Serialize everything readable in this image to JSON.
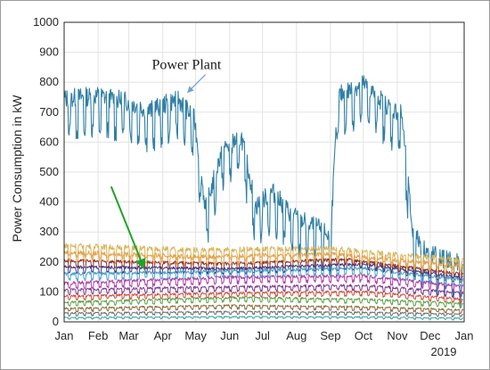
{
  "chart_data": {
    "type": "line",
    "title": "",
    "xlabel": "",
    "ylabel": "Power Consumption in kW",
    "xlim": [
      "2019-01-01",
      "2020-01-01"
    ],
    "ylim": [
      0,
      1000
    ],
    "yticks": [
      0,
      100,
      200,
      300,
      400,
      500,
      600,
      700,
      800,
      900,
      1000
    ],
    "xticks": [
      "Jan",
      "Feb",
      "Mar",
      "Apr",
      "May",
      "Jun",
      "Jul",
      "Aug",
      "Sep",
      "Oct",
      "Nov",
      "Dec",
      "Jan"
    ],
    "year_label": "2019",
    "grid": true,
    "annotations": [
      {
        "text": "Power Plant",
        "points_to": {
          "x": "2019-04-22",
          "y": 760
        },
        "arrow_color": "#6fa3c7"
      },
      {
        "text": "",
        "points_to": {
          "x": "2019-03-15",
          "y": 160
        },
        "arrow_color": "#1fa32a"
      }
    ],
    "series": [
      {
        "color": "#2f7fa6",
        "line_width": 1.1,
        "baseline": [
          {
            "x": "2019-01-01",
            "y": 690
          },
          {
            "x": "2019-02-01",
            "y": 700
          },
          {
            "x": "2019-03-01",
            "y": 680
          },
          {
            "x": "2019-03-20",
            "y": 650
          },
          {
            "x": "2019-04-15",
            "y": 690
          },
          {
            "x": "2019-04-30",
            "y": 620
          },
          {
            "x": "2019-05-10",
            "y": 320
          },
          {
            "x": "2019-05-25",
            "y": 520
          },
          {
            "x": "2019-06-12",
            "y": 560
          },
          {
            "x": "2019-06-25",
            "y": 330
          },
          {
            "x": "2019-07-10",
            "y": 380
          },
          {
            "x": "2019-07-28",
            "y": 300
          },
          {
            "x": "2019-08-20",
            "y": 260
          },
          {
            "x": "2019-09-01",
            "y": 230
          },
          {
            "x": "2019-09-08",
            "y": 700
          },
          {
            "x": "2019-10-01",
            "y": 740
          },
          {
            "x": "2019-10-25",
            "y": 660
          },
          {
            "x": "2019-11-05",
            "y": 640
          },
          {
            "x": "2019-11-15",
            "y": 240
          },
          {
            "x": "2019-12-01",
            "y": 170
          },
          {
            "x": "2019-12-20",
            "y": 150
          },
          {
            "x": "2019-12-31",
            "y": 130
          }
        ],
        "weekly_amplitude": 110
      },
      {
        "color": "#d9b45a",
        "line_width": 1,
        "baseline": [
          {
            "x": "2019-01-01",
            "y": 240
          },
          {
            "x": "2019-05-01",
            "y": 225
          },
          {
            "x": "2019-09-01",
            "y": 230
          },
          {
            "x": "2019-12-31",
            "y": 190
          }
        ],
        "weekly_amplitude": 30
      },
      {
        "color": "#e5a04a",
        "line_width": 1,
        "baseline": [
          {
            "x": "2019-01-01",
            "y": 220
          },
          {
            "x": "2019-05-01",
            "y": 205
          },
          {
            "x": "2019-09-01",
            "y": 215
          },
          {
            "x": "2019-12-31",
            "y": 175
          }
        ],
        "weekly_amplitude": 25
      },
      {
        "color": "#8c2f2f",
        "line_width": 1,
        "baseline": [
          {
            "x": "2019-01-01",
            "y": 195
          },
          {
            "x": "2019-06-01",
            "y": 185
          },
          {
            "x": "2019-09-15",
            "y": 200
          },
          {
            "x": "2019-12-31",
            "y": 150
          }
        ],
        "weekly_amplitude": 18
      },
      {
        "color": "#3b3b8f",
        "line_width": 1,
        "baseline": [
          {
            "x": "2019-01-01",
            "y": 175
          },
          {
            "x": "2019-06-01",
            "y": 170
          },
          {
            "x": "2019-10-01",
            "y": 185
          },
          {
            "x": "2019-12-31",
            "y": 140
          }
        ],
        "weekly_amplitude": 16
      },
      {
        "color": "#4aa3c9",
        "line_width": 1,
        "baseline": [
          {
            "x": "2019-01-01",
            "y": 150
          },
          {
            "x": "2019-06-01",
            "y": 160
          },
          {
            "x": "2019-10-01",
            "y": 170
          },
          {
            "x": "2019-12-31",
            "y": 130
          }
        ],
        "weekly_amplitude": 20
      },
      {
        "color": "#b23aa8",
        "line_width": 1,
        "baseline": [
          {
            "x": "2019-01-01",
            "y": 120
          },
          {
            "x": "2019-06-01",
            "y": 140
          },
          {
            "x": "2019-10-01",
            "y": 145
          },
          {
            "x": "2019-12-31",
            "y": 110
          }
        ],
        "weekly_amplitude": 18
      },
      {
        "color": "#7a3b8f",
        "line_width": 1,
        "baseline": [
          {
            "x": "2019-01-01",
            "y": 100
          },
          {
            "x": "2019-06-01",
            "y": 110
          },
          {
            "x": "2019-10-01",
            "y": 115
          },
          {
            "x": "2019-12-31",
            "y": 90
          }
        ],
        "weekly_amplitude": 14
      },
      {
        "color": "#d44c3a",
        "line_width": 1,
        "baseline": [
          {
            "x": "2019-01-01",
            "y": 80
          },
          {
            "x": "2019-06-01",
            "y": 90
          },
          {
            "x": "2019-10-01",
            "y": 95
          },
          {
            "x": "2019-12-31",
            "y": 70
          }
        ],
        "weekly_amplitude": 12
      },
      {
        "color": "#5aa34a",
        "line_width": 1,
        "baseline": [
          {
            "x": "2019-01-01",
            "y": 60
          },
          {
            "x": "2019-06-01",
            "y": 75
          },
          {
            "x": "2019-10-01",
            "y": 70
          },
          {
            "x": "2019-12-31",
            "y": 55
          }
        ],
        "weekly_amplitude": 12
      },
      {
        "color": "#8a6a3a",
        "line_width": 1,
        "baseline": [
          {
            "x": "2019-01-01",
            "y": 40
          },
          {
            "x": "2019-06-01",
            "y": 50
          },
          {
            "x": "2019-10-01",
            "y": 45
          },
          {
            "x": "2019-12-31",
            "y": 35
          }
        ],
        "weekly_amplitude": 10
      },
      {
        "color": "#6f6f6f",
        "line_width": 1,
        "baseline": [
          {
            "x": "2019-01-01",
            "y": 25
          },
          {
            "x": "2019-06-01",
            "y": 30
          },
          {
            "x": "2019-10-01",
            "y": 28
          },
          {
            "x": "2019-12-31",
            "y": 22
          }
        ],
        "weekly_amplitude": 8
      },
      {
        "color": "#3aa3a0",
        "line_width": 1,
        "baseline": [
          {
            "x": "2019-01-01",
            "y": 12
          },
          {
            "x": "2019-06-01",
            "y": 15
          },
          {
            "x": "2019-10-01",
            "y": 14
          },
          {
            "x": "2019-12-31",
            "y": 10
          }
        ],
        "weekly_amplitude": 5
      }
    ]
  }
}
